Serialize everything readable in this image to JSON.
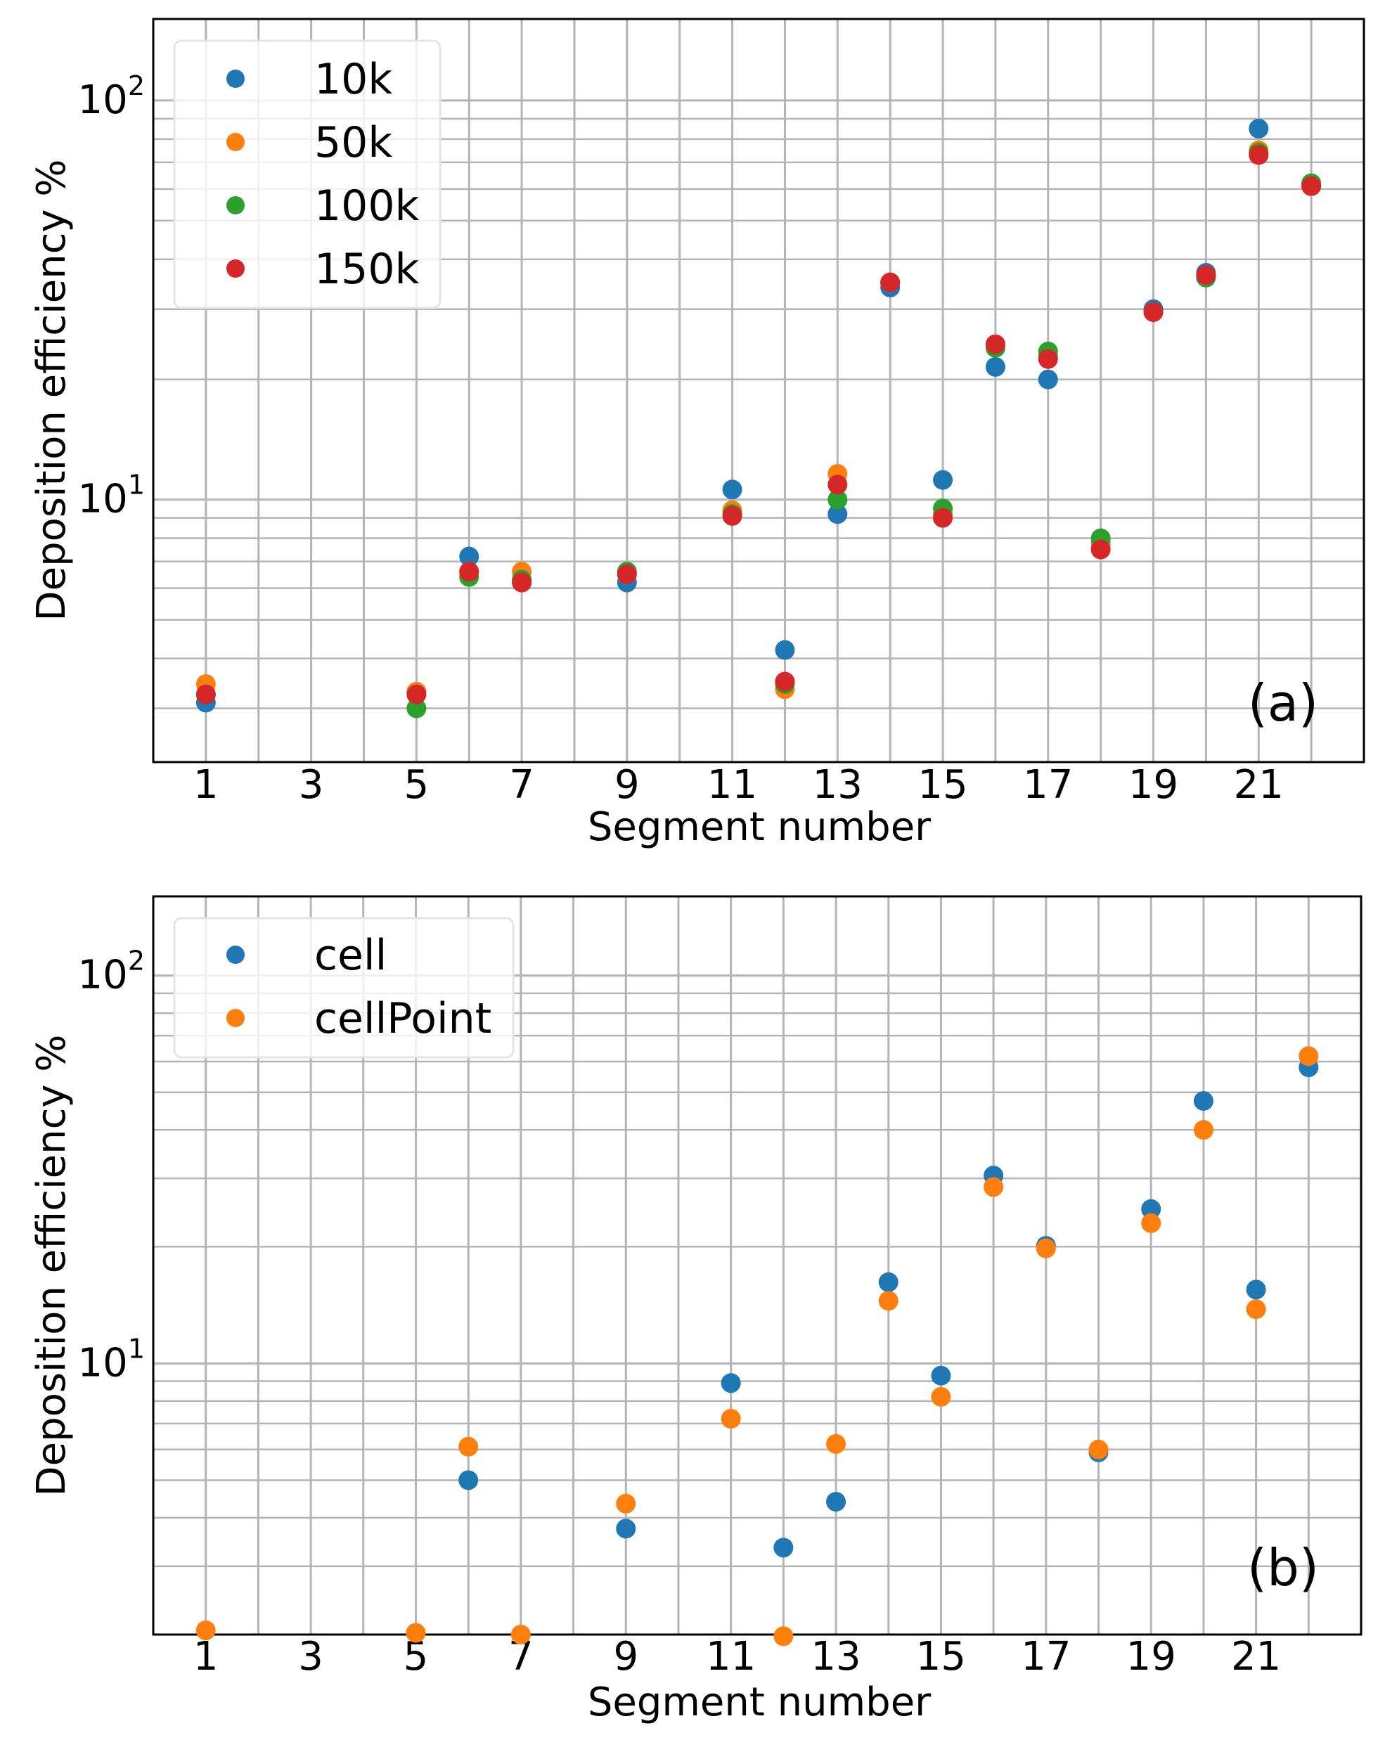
{
  "colors": {
    "blue": "#1f77b4",
    "orange": "#ff7f0e",
    "green": "#2ca02c",
    "red": "#d62728"
  },
  "chart_data": [
    {
      "type": "scatter",
      "panel_label": "(a)",
      "xlabel": "Segment number",
      "ylabel": "Deposition efficiency %",
      "yscale": "log",
      "ylim": [
        2.2,
        160
      ],
      "xlim": [
        0,
        23
      ],
      "x_ticks": [
        1,
        3,
        5,
        7,
        9,
        11,
        13,
        15,
        17,
        19,
        21
      ],
      "y_ticks": [
        {
          "value": 10,
          "base": "10",
          "exp": "1"
        },
        {
          "value": 100,
          "base": "10",
          "exp": "2"
        }
      ],
      "grid": true,
      "legend_position": "top-left",
      "series": [
        {
          "name": "10k",
          "color": "#1f77b4",
          "x": [
            1,
            5,
            6,
            7,
            9,
            11,
            12,
            13,
            14,
            15,
            16,
            17,
            18,
            19,
            20,
            21,
            22
          ],
          "y": [
            3.1,
            3.3,
            7.2,
            6.2,
            6.2,
            10.6,
            4.2,
            9.2,
            34.0,
            11.2,
            21.5,
            20.0,
            7.8,
            30.0,
            37.0,
            85.0,
            62.0
          ]
        },
        {
          "name": "50k",
          "color": "#ff7f0e",
          "x": [
            1,
            5,
            6,
            7,
            9,
            11,
            12,
            13,
            14,
            15,
            16,
            17,
            18,
            19,
            20,
            21,
            22
          ],
          "y": [
            3.45,
            3.3,
            6.6,
            6.6,
            6.5,
            9.4,
            3.35,
            11.6,
            35.0,
            9.2,
            24.5,
            23.0,
            7.7,
            29.5,
            36.5,
            75.0,
            61.0
          ]
        },
        {
          "name": "100k",
          "color": "#2ca02c",
          "x": [
            1,
            5,
            6,
            7,
            9,
            11,
            12,
            13,
            14,
            15,
            16,
            17,
            18,
            19,
            20,
            21,
            22
          ],
          "y": [
            3.25,
            3.0,
            6.4,
            6.3,
            6.6,
            9.2,
            3.45,
            10.0,
            35.0,
            9.5,
            24.0,
            23.5,
            8.0,
            29.5,
            36.0,
            74.0,
            62.0
          ]
        },
        {
          "name": "150k",
          "color": "#d62728",
          "x": [
            1,
            5,
            6,
            7,
            9,
            11,
            12,
            13,
            14,
            15,
            16,
            17,
            18,
            19,
            20,
            21,
            22
          ],
          "y": [
            3.25,
            3.25,
            6.6,
            6.2,
            6.5,
            9.1,
            3.5,
            10.9,
            35.0,
            9.0,
            24.5,
            22.5,
            7.5,
            29.5,
            36.5,
            73.0,
            61.0
          ]
        }
      ]
    },
    {
      "type": "scatter",
      "panel_label": "(b)",
      "xlabel": "Segment number",
      "ylabel": "Deposition efficiency %",
      "yscale": "log",
      "ylim": [
        2.0,
        160
      ],
      "xlim": [
        0,
        23
      ],
      "x_ticks": [
        1,
        3,
        5,
        7,
        9,
        11,
        13,
        15,
        17,
        19,
        21
      ],
      "y_ticks": [
        {
          "value": 10,
          "base": "10",
          "exp": "1"
        },
        {
          "value": 100,
          "base": "10",
          "exp": "2"
        }
      ],
      "grid": true,
      "legend_position": "top-left",
      "series": [
        {
          "name": "cell",
          "color": "#1f77b4",
          "x": [
            6,
            9,
            11,
            12,
            13,
            14,
            15,
            16,
            17,
            18,
            19,
            20,
            21,
            22
          ],
          "y": [
            5.0,
            3.75,
            8.9,
            3.35,
            4.4,
            16.2,
            9.3,
            30.5,
            20.1,
            5.9,
            25.0,
            47.5,
            15.5,
            58.0
          ]
        },
        {
          "name": "cellPoint",
          "color": "#ff7f0e",
          "x": [
            1,
            5,
            6,
            7,
            9,
            11,
            12,
            13,
            14,
            15,
            16,
            17,
            18,
            19,
            20,
            21,
            22
          ],
          "y": [
            2.05,
            2.02,
            6.1,
            2.0,
            4.35,
            7.2,
            1.98,
            6.2,
            14.5,
            8.2,
            28.5,
            19.8,
            6.0,
            23.0,
            40.0,
            13.8,
            62.0
          ]
        }
      ]
    }
  ]
}
